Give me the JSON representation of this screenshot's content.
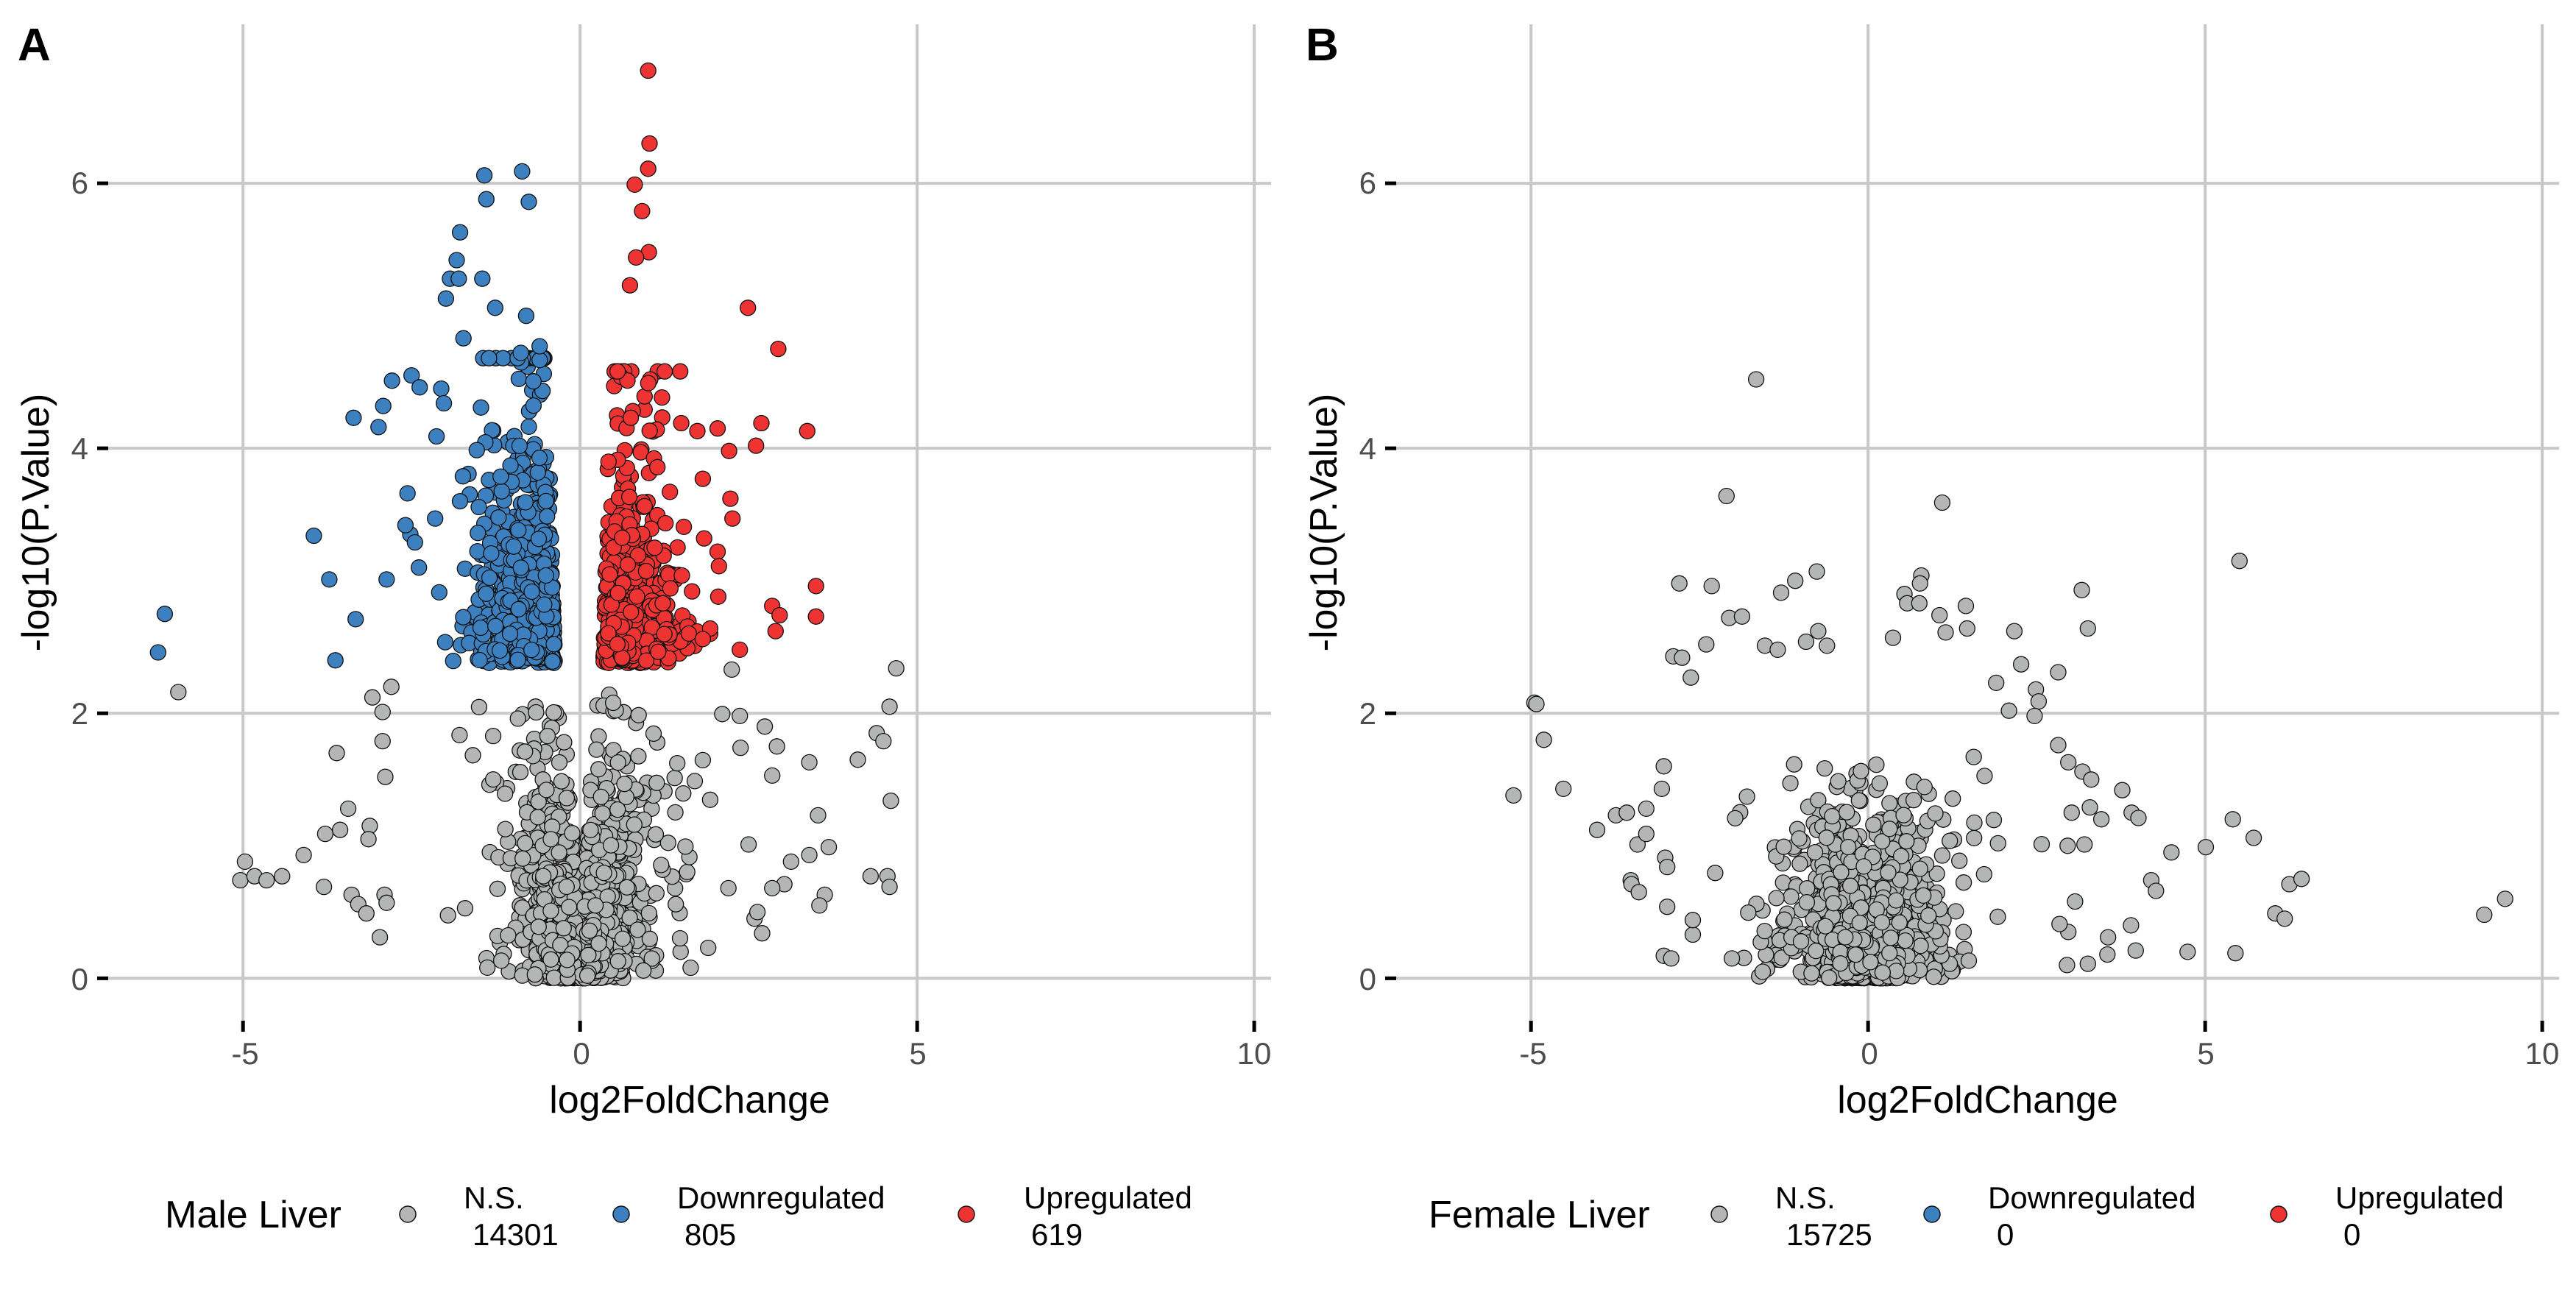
{
  "colors": {
    "ns": "#b4b6b5",
    "down": "#3d80bf",
    "up": "#ee3333",
    "grid": "#c8c8c8",
    "outline": "#111111"
  },
  "chart_data": [
    {
      "type": "scatter",
      "panel_tag": "A",
      "xlabel": "log2FoldChange",
      "ylabel": "-log10(P.Value)",
      "xlim": [
        -7.0,
        10.25
      ],
      "ylim": [
        -0.32,
        7.2
      ],
      "xticks": [
        "-5",
        "0",
        "5",
        "10"
      ],
      "yticks": [
        "0",
        "2",
        "4",
        "6"
      ],
      "grid": true,
      "legend": {
        "placement": "bottom",
        "title": "Male Liver",
        "entries": [
          {
            "label": "N.S.",
            "count": "14301",
            "color_key": "ns"
          },
          {
            "label": "Downregulated",
            "count": "805",
            "color_key": "down"
          },
          {
            "label": "Upregulated",
            "count": "619",
            "color_key": "up"
          }
        ]
      },
      "series": [
        {
          "name": "N.S.",
          "color_key": "ns",
          "points": [
            [
              -5.96,
              2.16
            ],
            [
              -4.97,
              0.88
            ],
            [
              -5.04,
              0.74
            ],
            [
              -4.83,
              0.77
            ],
            [
              -4.65,
              0.74
            ],
            [
              -4.42,
              0.77
            ],
            [
              -4.1,
              0.93
            ],
            [
              -3.8,
              0.69
            ],
            [
              -3.78,
              1.09
            ],
            [
              -3.56,
              1.12
            ],
            [
              -3.44,
              1.28
            ],
            [
              -3.61,
              1.7
            ],
            [
              -3.39,
              0.63
            ],
            [
              -3.29,
              0.56
            ],
            [
              -3.17,
              0.49
            ],
            [
              -2.97,
              0.31
            ],
            [
              -2.9,
              0.63
            ],
            [
              -2.87,
              0.57
            ],
            [
              -3.08,
              2.12
            ],
            [
              -2.8,
              2.2
            ],
            [
              -2.93,
              2.01
            ],
            [
              -2.93,
              1.79
            ],
            [
              -2.89,
              1.52
            ],
            [
              -3.12,
              1.15
            ],
            [
              -3.14,
              1.05
            ],
            [
              4.69,
              2.34
            ],
            [
              4.59,
              2.05
            ],
            [
              4.4,
              1.85
            ],
            [
              4.5,
              1.79
            ],
            [
              4.12,
              1.65
            ],
            [
              3.4,
              1.63
            ],
            [
              4.61,
              1.34
            ],
            [
              3.53,
              1.23
            ],
            [
              3.69,
              0.99
            ],
            [
              3.4,
              0.93
            ],
            [
              3.13,
              0.88
            ],
            [
              3.03,
              0.71
            ],
            [
              2.85,
              0.68
            ],
            [
              3.63,
              0.63
            ],
            [
              3.55,
              0.55
            ],
            [
              2.63,
              0.5
            ],
            [
              2.7,
              0.34
            ],
            [
              4.31,
              0.77
            ],
            [
              4.56,
              0.77
            ],
            [
              4.59,
              0.69
            ],
            [
              2.92,
              1.75
            ],
            [
              2.74,
              1.9
            ],
            [
              2.85,
              1.53
            ],
            [
              2.37,
              1.98
            ],
            [
              2.38,
              1.74
            ],
            [
              2.5,
              1.01
            ],
            [
              1.9,
              0.23
            ],
            [
              1.64,
              0.08
            ],
            [
              2.25,
              2.33
            ],
            [
              2.2,
              0.68
            ]
          ]
        },
        {
          "name": "Downregulated",
          "color_key": "down",
          "points": [
            [
              -0.86,
              6.09
            ],
            [
              -1.42,
              6.06
            ],
            [
              -1.39,
              5.88
            ],
            [
              -0.76,
              5.86
            ],
            [
              -1.78,
              5.63
            ],
            [
              -1.83,
              5.42
            ],
            [
              -1.93,
              5.28
            ],
            [
              -1.8,
              5.28
            ],
            [
              -1.45,
              5.28
            ],
            [
              -1.99,
              5.13
            ],
            [
              -1.26,
              5.06
            ],
            [
              -0.8,
              5.0
            ],
            [
              -1.73,
              4.83
            ],
            [
              -0.6,
              4.77
            ],
            [
              -0.88,
              4.72
            ],
            [
              -2.5,
              4.55
            ],
            [
              -2.79,
              4.51
            ],
            [
              -2.38,
              4.46
            ],
            [
              -2.06,
              4.45
            ],
            [
              -2.02,
              4.34
            ],
            [
              -2.92,
              4.32
            ],
            [
              -3.36,
              4.23
            ],
            [
              -2.99,
              4.16
            ],
            [
              -2.13,
              4.09
            ],
            [
              -2.56,
              3.66
            ],
            [
              -2.59,
              3.42
            ],
            [
              -2.15,
              3.47
            ],
            [
              -3.95,
              3.34
            ],
            [
              -3.72,
              3.01
            ],
            [
              -2.87,
              3.01
            ],
            [
              -6.16,
              2.75
            ],
            [
              -6.26,
              2.46
            ],
            [
              -3.33,
              2.71
            ],
            [
              -3.63,
              2.4
            ],
            [
              -2.45,
              3.29
            ],
            [
              -2.39,
              3.1
            ]
          ]
        },
        {
          "name": "Upregulated",
          "color_key": "up",
          "points": [
            [
              1.01,
              6.85
            ],
            [
              1.03,
              6.3
            ],
            [
              1.01,
              6.11
            ],
            [
              0.81,
              5.99
            ],
            [
              0.92,
              5.79
            ],
            [
              1.02,
              5.48
            ],
            [
              0.83,
              5.44
            ],
            [
              0.74,
              5.23
            ],
            [
              2.49,
              5.06
            ],
            [
              2.94,
              4.75
            ],
            [
              3.37,
              4.13
            ],
            [
              2.69,
              4.19
            ],
            [
              2.61,
              4.02
            ],
            [
              2.21,
              3.98
            ],
            [
              2.04,
              4.15
            ],
            [
              1.74,
              4.13
            ],
            [
              1.5,
              4.19
            ],
            [
              1.82,
              3.77
            ],
            [
              2.23,
              3.62
            ],
            [
              2.26,
              3.47
            ],
            [
              1.84,
              3.32
            ],
            [
              2.04,
              3.22
            ],
            [
              2.06,
              3.11
            ],
            [
              2.05,
              2.88
            ],
            [
              3.5,
              2.96
            ],
            [
              3.5,
              2.73
            ],
            [
              2.85,
              2.81
            ],
            [
              2.96,
              2.74
            ],
            [
              2.9,
              2.62
            ],
            [
              2.37,
              2.48
            ],
            [
              1.51,
              3.04
            ],
            [
              1.93,
              2.64
            ],
            [
              1.82,
              2.56
            ]
          ]
        }
      ]
    },
    {
      "type": "scatter",
      "panel_tag": "B",
      "xlabel": "log2FoldChange",
      "ylabel": "-log10(P.Value)",
      "xlim": [
        -7.0,
        10.25
      ],
      "ylim": [
        -0.32,
        7.2
      ],
      "xticks": [
        "-5",
        "0",
        "5",
        "10"
      ],
      "yticks": [
        "0",
        "2",
        "4",
        "6"
      ],
      "grid": true,
      "legend": {
        "placement": "bottom",
        "title": "Female Liver",
        "entries": [
          {
            "label": "N.S.",
            "count": "15725",
            "color_key": "ns"
          },
          {
            "label": "Downregulated",
            "count": "0",
            "color_key": "down"
          },
          {
            "label": "Upregulated",
            "count": "0",
            "color_key": "up"
          }
        ]
      },
      "series": [
        {
          "name": "N.S.",
          "color_key": "ns",
          "points": [
            [
              -1.66,
              4.52
            ],
            [
              -2.1,
              3.64
            ],
            [
              1.1,
              3.59
            ],
            [
              5.51,
              3.15
            ],
            [
              -0.76,
              3.07
            ],
            [
              -2.8,
              2.98
            ],
            [
              -2.32,
              2.96
            ],
            [
              -1.08,
              3.0
            ],
            [
              -1.29,
              2.91
            ],
            [
              0.79,
              3.04
            ],
            [
              0.77,
              2.98
            ],
            [
              0.54,
              2.9
            ],
            [
              0.58,
              2.83
            ],
            [
              0.76,
              2.83
            ],
            [
              1.06,
              2.74
            ],
            [
              1.45,
              2.81
            ],
            [
              1.47,
              2.64
            ],
            [
              1.15,
              2.61
            ],
            [
              2.17,
              2.62
            ],
            [
              3.17,
              2.93
            ],
            [
              3.26,
              2.64
            ],
            [
              0.37,
              2.57
            ],
            [
              -2.06,
              2.72
            ],
            [
              -1.87,
              2.73
            ],
            [
              -2.4,
              2.52
            ],
            [
              -2.89,
              2.43
            ],
            [
              -2.76,
              2.42
            ],
            [
              -2.63,
              2.27
            ],
            [
              -1.53,
              2.51
            ],
            [
              -1.34,
              2.48
            ],
            [
              -0.74,
              2.62
            ],
            [
              -0.92,
              2.54
            ],
            [
              -0.61,
              2.51
            ],
            [
              -4.95,
              2.08
            ],
            [
              -4.92,
              2.07
            ],
            [
              -4.81,
              1.8
            ],
            [
              -5.26,
              1.38
            ],
            [
              -4.52,
              1.43
            ],
            [
              -4.02,
              1.12
            ],
            [
              -3.74,
              1.23
            ],
            [
              -3.58,
              1.25
            ],
            [
              -3.29,
              1.28
            ],
            [
              -3.42,
              1.01
            ],
            [
              -3.29,
              1.09
            ],
            [
              -3.52,
              0.74
            ],
            [
              -3.51,
              0.71
            ],
            [
              -3.4,
              0.65
            ],
            [
              -3.03,
              1.6
            ],
            [
              -3.06,
              1.43
            ],
            [
              -3.01,
              0.91
            ],
            [
              -2.98,
              0.84
            ],
            [
              -2.98,
              0.54
            ],
            [
              -3.03,
              0.17
            ],
            [
              -2.92,
              0.15
            ],
            [
              -2.02,
              0.15
            ],
            [
              -2.6,
              0.33
            ],
            [
              -2.6,
              0.44
            ],
            [
              1.9,
              2.23
            ],
            [
              2.09,
              2.02
            ],
            [
              2.27,
              2.37
            ],
            [
              2.82,
              2.31
            ],
            [
              2.49,
              2.18
            ],
            [
              2.53,
              2.09
            ],
            [
              2.47,
              1.98
            ],
            [
              2.82,
              1.76
            ],
            [
              2.97,
              1.63
            ],
            [
              3.18,
              1.56
            ],
            [
              3.31,
              1.5
            ],
            [
              3.77,
              1.42
            ],
            [
              3.91,
              1.25
            ],
            [
              4.01,
              1.21
            ],
            [
              3.29,
              1.29
            ],
            [
              3.46,
              1.2
            ],
            [
              3.02,
              1.25
            ],
            [
              3.21,
              1.01
            ],
            [
              2.96,
              1.0
            ],
            [
              4.5,
              0.95
            ],
            [
              5.01,
              0.99
            ],
            [
              5.41,
              1.2
            ],
            [
              5.72,
              1.06
            ],
            [
              4.2,
              0.74
            ],
            [
              4.27,
              0.66
            ],
            [
              6.25,
              0.71
            ],
            [
              6.43,
              0.75
            ],
            [
              6.04,
              0.49
            ],
            [
              6.18,
              0.45
            ],
            [
              3.9,
              0.4
            ],
            [
              3.97,
              0.21
            ],
            [
              4.74,
              0.2
            ],
            [
              5.45,
              0.19
            ],
            [
              3.56,
              0.31
            ],
            [
              3.55,
              0.18
            ],
            [
              3.26,
              0.11
            ],
            [
              2.95,
              0.1
            ],
            [
              2.97,
              0.35
            ],
            [
              3.07,
              0.58
            ],
            [
              2.84,
              0.41
            ],
            [
              9.14,
              0.48
            ],
            [
              9.45,
              0.6
            ]
          ]
        },
        {
          "name": "Downregulated",
          "color_key": "down",
          "points": []
        },
        {
          "name": "Upregulated",
          "color_key": "up",
          "points": []
        }
      ]
    }
  ]
}
